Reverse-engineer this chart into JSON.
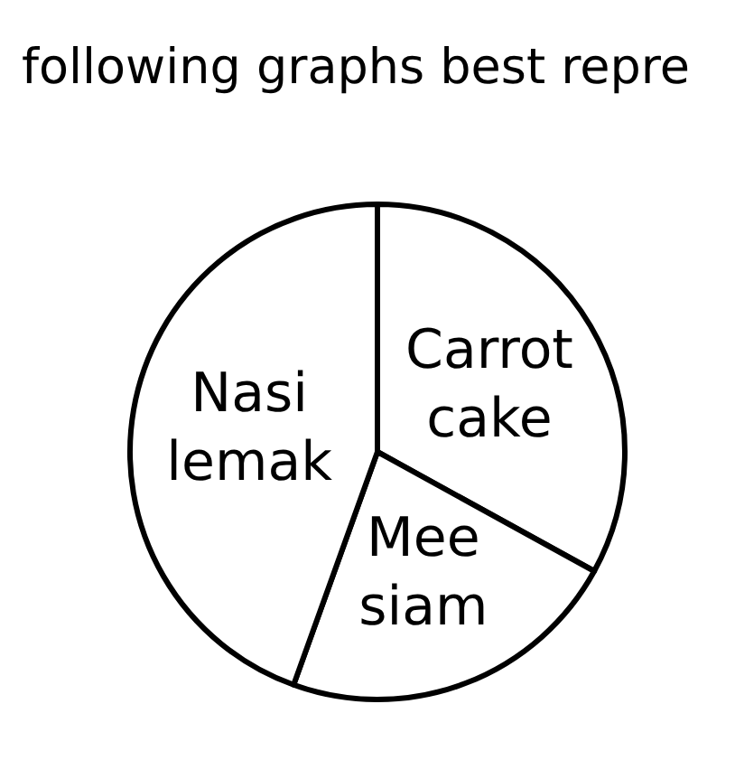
{
  "chart_data": {
    "type": "pie",
    "title": "following graphs best repre",
    "categories": [
      "Carrot cake",
      "Mee siam",
      "Nasi lemak"
    ],
    "values": [
      33,
      22.5,
      44.5
    ],
    "colors": [
      "#ffffff",
      "#ffffff",
      "#ffffff"
    ]
  }
}
